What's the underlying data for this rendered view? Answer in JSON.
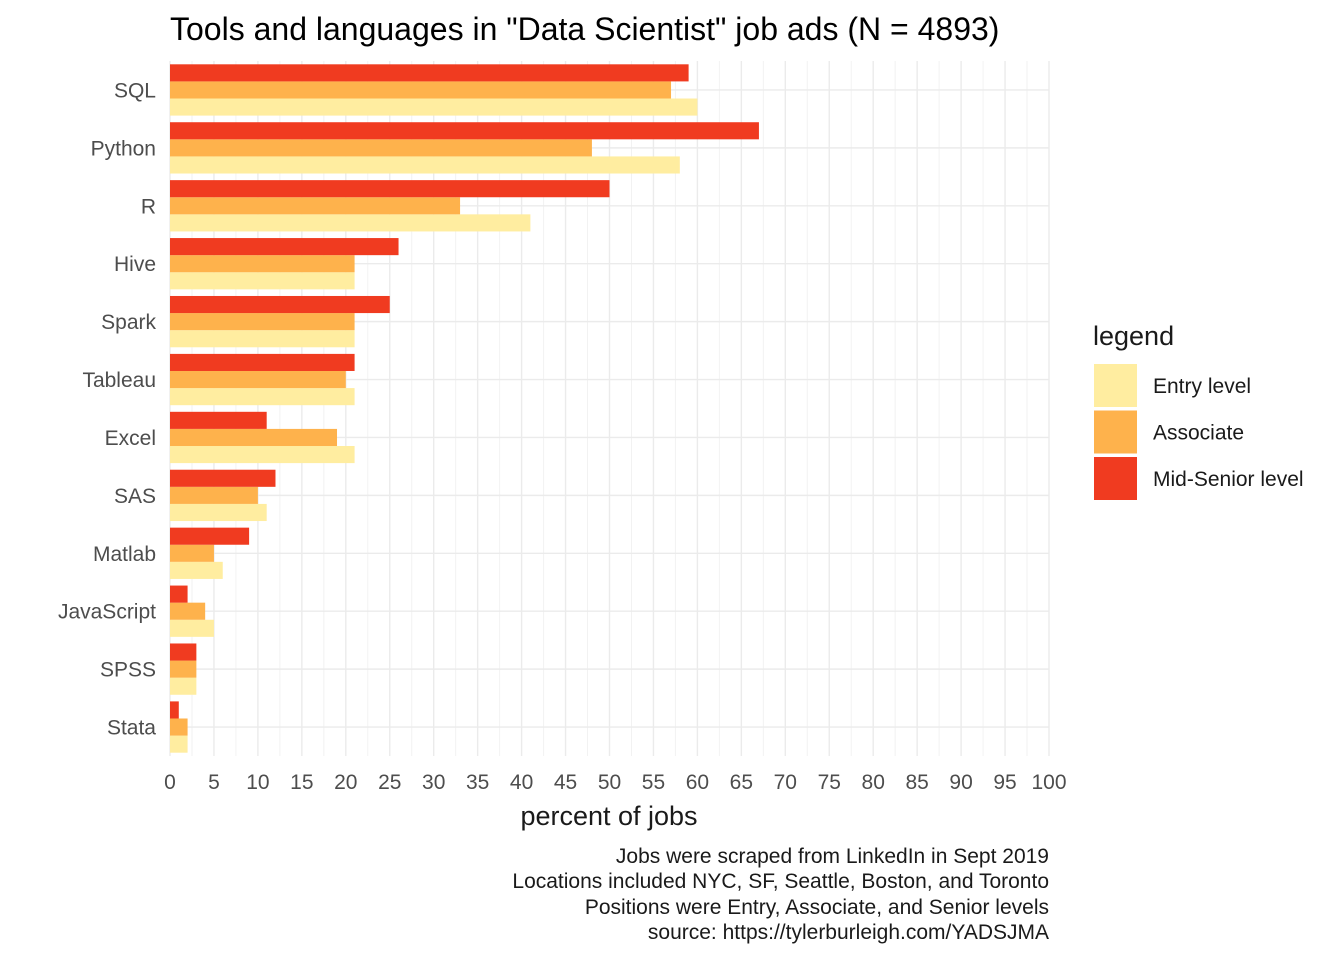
{
  "chart_data": {
    "type": "bar",
    "orientation": "horizontal",
    "title": "Tools and languages in \"Data Scientist\" job ads (N = 4893)",
    "xlabel": "percent of jobs",
    "ylabel": "",
    "xlim": [
      0,
      100
    ],
    "x_ticks": [
      0,
      5,
      10,
      15,
      20,
      25,
      30,
      35,
      40,
      45,
      50,
      55,
      60,
      65,
      70,
      75,
      80,
      85,
      90,
      95,
      100
    ],
    "grid": true,
    "categories": [
      "SQL",
      "Python",
      "R",
      "Hive",
      "Spark",
      "Tableau",
      "Excel",
      "SAS",
      "Matlab",
      "JavaScript",
      "SPSS",
      "Stata"
    ],
    "series": [
      {
        "name": "Entry level",
        "color": "#FFEDA0",
        "values": [
          60,
          58,
          41,
          21,
          21,
          21,
          21,
          11,
          6,
          5,
          3,
          2
        ]
      },
      {
        "name": "Associate",
        "color": "#FEB24C",
        "values": [
          57,
          48,
          33,
          21,
          21,
          20,
          19,
          10,
          5,
          4,
          3,
          2
        ]
      },
      {
        "name": "Mid-Senior level",
        "color": "#F03B20",
        "values": [
          59,
          67,
          50,
          26,
          25,
          21,
          11,
          12,
          9,
          2,
          3,
          1
        ]
      }
    ],
    "legend": {
      "title": "legend",
      "position": "right"
    },
    "caption": [
      "Jobs were scraped from LinkedIn in Sept 2019",
      "Locations included NYC, SF, Seattle, Boston, and Toronto",
      "Positions were Entry, Associate, and Senior levels",
      "source: https://tylerburleigh.com/YADSJMA"
    ]
  }
}
